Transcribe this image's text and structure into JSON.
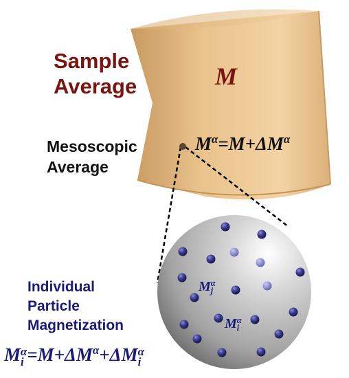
{
  "labels": {
    "sample_average": "Sample\nAverage",
    "mesoscopic_average": "Mesoscopic\nAverage",
    "individual_magnetization": "Individual\nParticle\nMagnetization"
  },
  "equations": {
    "cylinder_symbol": "M",
    "mesoscopic": {
      "lhs": "M",
      "lhs_sup": "α",
      "rhs": "=M+ΔM",
      "rhs_sup": "α"
    },
    "individual": {
      "lhs": "M",
      "lhs_sub": "i",
      "lhs_sup": "α",
      "rhs1": "=M+ΔM",
      "rhs1_sup": "α",
      "rhs2": "+ΔM",
      "rhs2_sub": "i",
      "rhs2_sup": "α"
    },
    "mj": {
      "base": "M",
      "sub": "j",
      "sup": "α"
    },
    "mi": {
      "base": "M",
      "sub": "i",
      "sup": "α"
    }
  },
  "colors": {
    "cylinder_light": "#f4d6a8",
    "cylinder_mid": "#dfb27a",
    "cylinder_dark": "#b5874e",
    "sphere_light": "#ffffff",
    "sphere_dark": "#7e7e7e",
    "particle": "#26266e",
    "dark_red": "#7a1410",
    "navy": "#1a1a7a"
  }
}
